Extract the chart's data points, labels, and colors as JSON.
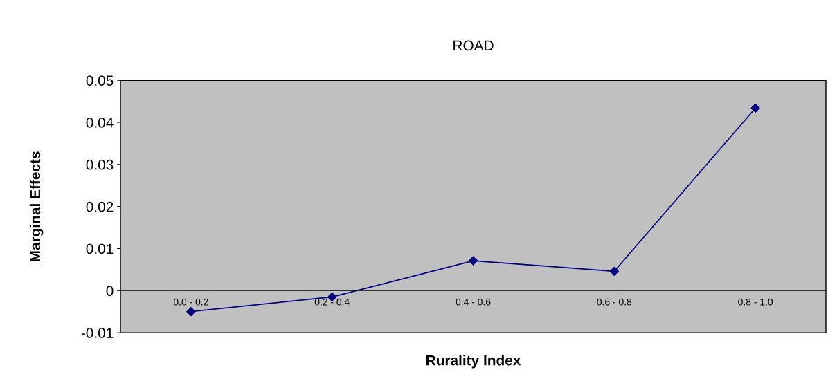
{
  "chart_data": {
    "type": "line",
    "title": "ROAD",
    "xlabel": "Rurality Index",
    "ylabel": "Marginal Effects",
    "categories": [
      "0.0 - 0.2",
      "0.2 - 0.4",
      "0.4 - 0.6",
      "0.6 - 0.8",
      "0.8 - 1.0"
    ],
    "series": [
      {
        "color": "#000080",
        "values": [
          -0.005,
          -0.0015,
          0.0071,
          0.0046,
          0.0434
        ]
      }
    ],
    "ylim": [
      -0.01,
      0.05
    ],
    "yticks": [
      -0.01,
      0,
      0.01,
      0.02,
      0.03,
      0.04,
      0.05
    ],
    "grid": false,
    "legend": false,
    "marker": "diamond",
    "line_style": "solid"
  }
}
